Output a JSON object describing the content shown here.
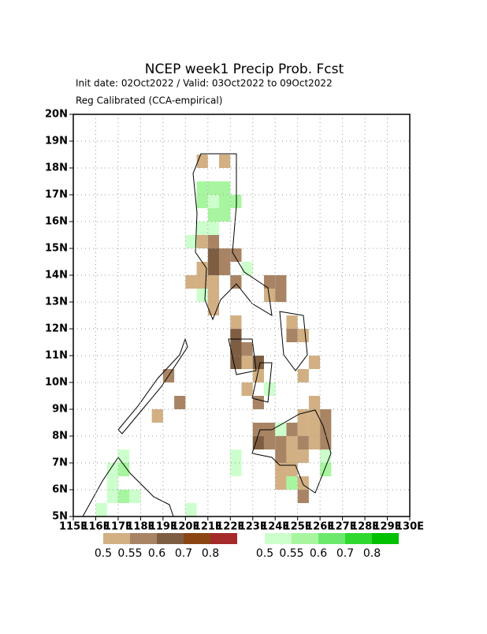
{
  "header": {
    "title": "NCEP week1 Precip Prob. Fcst",
    "subtitle": "Init date: 02Oct2022 / Valid: 03Oct2022 to 09Oct2022",
    "method": "Reg Calibrated (CCA-empirical)"
  },
  "map": {
    "lonlim": [
      115,
      130
    ],
    "latlim": [
      5,
      20
    ],
    "xticks": [
      {
        "value": 115,
        "label": "115E"
      },
      {
        "value": 116,
        "label": "116E"
      },
      {
        "value": 117,
        "label": "117E"
      },
      {
        "value": 118,
        "label": "118E"
      },
      {
        "value": 119,
        "label": "119E"
      },
      {
        "value": 120,
        "label": "120E"
      },
      {
        "value": 121,
        "label": "121E"
      },
      {
        "value": 122,
        "label": "122E"
      },
      {
        "value": 123,
        "label": "123E"
      },
      {
        "value": 124,
        "label": "124E"
      },
      {
        "value": 125,
        "label": "125E"
      },
      {
        "value": 126,
        "label": "126E"
      },
      {
        "value": 127,
        "label": "127E"
      },
      {
        "value": 128,
        "label": "128E"
      },
      {
        "value": 129,
        "label": "129E"
      },
      {
        "value": 130,
        "label": "130E"
      }
    ],
    "yticks": [
      {
        "value": 5,
        "label": "5N"
      },
      {
        "value": 6,
        "label": "6N"
      },
      {
        "value": 7,
        "label": "7N"
      },
      {
        "value": 8,
        "label": "8N"
      },
      {
        "value": 9,
        "label": "9N"
      },
      {
        "value": 10,
        "label": "10N"
      },
      {
        "value": 11,
        "label": "11N"
      },
      {
        "value": 12,
        "label": "12N"
      },
      {
        "value": 13,
        "label": "13N"
      },
      {
        "value": 14,
        "label": "14N"
      },
      {
        "value": 15,
        "label": "15N"
      },
      {
        "value": 16,
        "label": "16N"
      },
      {
        "value": 17,
        "label": "17N"
      },
      {
        "value": 18,
        "label": "18N"
      },
      {
        "value": 19,
        "label": "19N"
      },
      {
        "value": 20,
        "label": "20N"
      }
    ],
    "cell_size": 0.5,
    "below_cells": [
      [
        120.5,
        18,
        0.5
      ],
      [
        121.5,
        18,
        0.5
      ],
      [
        121,
        15.5,
        0.5
      ],
      [
        121,
        15,
        0.55
      ],
      [
        121,
        14.5,
        0.6
      ],
      [
        121,
        14,
        0.6
      ],
      [
        120.5,
        15,
        0.5
      ],
      [
        121.5,
        14.5,
        0.55
      ],
      [
        122,
        14.5,
        0.55
      ],
      [
        120.5,
        14,
        0.5
      ],
      [
        121.5,
        14,
        0.55
      ],
      [
        120.5,
        13.5,
        0.5
      ],
      [
        121,
        13.5,
        0.5
      ],
      [
        121,
        13,
        0.5
      ],
      [
        121,
        12.5,
        0.5
      ],
      [
        122,
        13.5,
        0.55
      ],
      [
        123.5,
        13.5,
        0.55
      ],
      [
        124,
        13.5,
        0.55
      ],
      [
        123.5,
        13,
        0.5
      ],
      [
        124,
        13,
        0.55
      ],
      [
        122,
        12,
        0.5
      ],
      [
        124.5,
        12,
        0.5
      ],
      [
        124.5,
        11.5,
        0.55
      ],
      [
        125,
        11.5,
        0.5
      ],
      [
        122,
        11.5,
        0.6
      ],
      [
        122,
        11,
        0.6
      ],
      [
        122.5,
        11,
        0.55
      ],
      [
        122,
        10.5,
        0.6
      ],
      [
        122.5,
        10.5,
        0.5
      ],
      [
        123,
        10.5,
        0.6
      ],
      [
        123,
        10,
        0.5
      ],
      [
        122.5,
        9.5,
        0.5
      ],
      [
        123,
        9,
        0.55
      ],
      [
        123.5,
        9.5,
        0.5
      ],
      [
        125.5,
        10.5,
        0.5
      ],
      [
        125,
        10,
        0.5
      ],
      [
        125.5,
        9,
        0.5
      ],
      [
        125,
        8.5,
        0.5
      ],
      [
        125.5,
        8.5,
        0.5
      ],
      [
        126,
        8.5,
        0.55
      ],
      [
        123,
        8,
        0.55
      ],
      [
        123.5,
        8,
        0.55
      ],
      [
        124.5,
        8,
        0.55
      ],
      [
        125,
        8,
        0.5
      ],
      [
        125.5,
        8,
        0.5
      ],
      [
        126,
        8,
        0.55
      ],
      [
        123,
        7.5,
        0.6
      ],
      [
        123.5,
        7.5,
        0.55
      ],
      [
        124,
        7.5,
        0.55
      ],
      [
        124.5,
        7.5,
        0.5
      ],
      [
        125,
        7.5,
        0.55
      ],
      [
        125.5,
        7.5,
        0.5
      ],
      [
        126,
        7.5,
        0.55
      ],
      [
        124,
        7,
        0.55
      ],
      [
        124.5,
        7,
        0.5
      ],
      [
        125,
        7,
        0.5
      ],
      [
        124,
        6.5,
        0.5
      ],
      [
        124.5,
        6.5,
        0.5
      ],
      [
        124,
        6,
        0.5
      ],
      [
        124.5,
        6,
        0.5
      ],
      [
        125,
        6,
        0.5
      ],
      [
        125,
        5.5,
        0.55
      ],
      [
        119,
        10,
        0.55
      ],
      [
        119.5,
        9,
        0.55
      ],
      [
        118.5,
        8.5,
        0.5
      ],
      [
        120,
        13.5,
        0.5
      ]
    ],
    "above_cells": [
      [
        120.5,
        17,
        0.55
      ],
      [
        121,
        17,
        0.55
      ],
      [
        121.5,
        17,
        0.55
      ],
      [
        120.5,
        16.5,
        0.55
      ],
      [
        121,
        16.5,
        0.5
      ],
      [
        121.5,
        16.5,
        0.55
      ],
      [
        122,
        16.5,
        0.55
      ],
      [
        121,
        16,
        0.55
      ],
      [
        121.5,
        16,
        0.55
      ],
      [
        120.5,
        15.5,
        0.5
      ],
      [
        121,
        15.5,
        0.5
      ],
      [
        120,
        15,
        0.5
      ],
      [
        120.5,
        13,
        0.5
      ],
      [
        122.5,
        14,
        0.5
      ],
      [
        123.5,
        9.5,
        0.5
      ],
      [
        124,
        8,
        0.5
      ],
      [
        124.5,
        6,
        0.55
      ],
      [
        126,
        6.5,
        0.55
      ],
      [
        126,
        7,
        0.5
      ],
      [
        122,
        6.5,
        0.5
      ],
      [
        122,
        7,
        0.5
      ],
      [
        116.5,
        6,
        0.5
      ],
      [
        117,
        6.5,
        0.55
      ],
      [
        117,
        7,
        0.5
      ],
      [
        116.5,
        6.5,
        0.5
      ],
      [
        117,
        5.5,
        0.55
      ],
      [
        117.5,
        5.5,
        0.5
      ],
      [
        116,
        5,
        0.5
      ],
      [
        116.5,
        5.5,
        0.5
      ],
      [
        120,
        5,
        0.5
      ]
    ]
  },
  "legend": {
    "below": {
      "levels": [
        0.5,
        0.55,
        0.6,
        0.7,
        0.8
      ],
      "colors": [
        "#d2b083",
        "#a88464",
        "#7e5e42",
        "#8b4513",
        "#a52a2a"
      ]
    },
    "above": {
      "levels": [
        0.5,
        0.55,
        0.6,
        0.7,
        0.8
      ],
      "colors": [
        "#ccffcc",
        "#a8f5a0",
        "#6ce86c",
        "#2ed82e",
        "#00c000"
      ]
    }
  }
}
